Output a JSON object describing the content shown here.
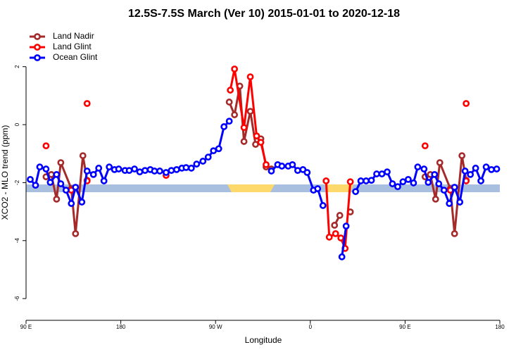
{
  "chart_data": {
    "type": "line",
    "title": "12.5S-7.5S March (Ver 10)   2015-01-01 to 2020-12-18",
    "x_label": "Longitude",
    "y_label": "XCO2 - MLO trend (ppm)",
    "xlim": [
      90,
      540
    ],
    "xticks": [
      {
        "value": 90,
        "label": "90 E"
      },
      {
        "value": 180,
        "label": "180"
      },
      {
        "value": 270,
        "label": "90 W"
      },
      {
        "value": 360,
        "label": "0"
      },
      {
        "value": 450,
        "label": "90 E"
      },
      {
        "value": 540,
        "label": "180"
      }
    ],
    "ylim": [
      -6.75,
      3.45
    ],
    "yticks": [
      -6,
      -4,
      -2,
      0,
      2
    ],
    "legend": "top-left",
    "series": [
      {
        "name": "Land Nadir",
        "color": "#a52a2a",
        "x": [
          109,
          114,
          119,
          123,
          133,
          137,
          144,
          148,
          null,
          283,
          288,
          293,
          297,
          303,
          308,
          313,
          318,
          323,
          null,
          383,
          388,
          null,
          398,
          null,
          469,
          474,
          479,
          483,
          493,
          497,
          504,
          508
        ],
        "values": [
          -1.8,
          -1.72,
          -2.57,
          -1.31,
          -2.21,
          -3.76,
          -1.07,
          -1.92,
          null,
          0.78,
          0.34,
          1.33,
          -0.58,
          0.46,
          -0.68,
          -0.49,
          -1.46,
          -1.53,
          null,
          -3.47,
          -3.13,
          null,
          -3.01,
          null,
          -1.8,
          -1.72,
          -2.57,
          -1.31,
          -2.21,
          -3.76,
          -1.07,
          -1.92
        ]
      },
      {
        "name": "Land Glint",
        "color": "#ff0000",
        "x": [
          109,
          null,
          133,
          null,
          148,
          null,
          148,
          null,
          223,
          null,
          284,
          288,
          297,
          303,
          309,
          313,
          318,
          null,
          375,
          378,
          384,
          389,
          393,
          398,
          null,
          469,
          null,
          493,
          null,
          508,
          null,
          508
        ],
        "values": [
          -0.73,
          null,
          -2.26,
          null,
          0.73,
          null,
          -1.94,
          null,
          -1.75,
          null,
          1.19,
          1.92,
          -0.1,
          1.65,
          -0.39,
          -0.61,
          -1.38,
          null,
          -1.94,
          -3.88,
          -3.76,
          -3.91,
          -4.27,
          -1.97,
          null,
          -0.73,
          null,
          -2.26,
          null,
          0.73,
          null,
          -1.94
        ]
      },
      {
        "name": "Ocean Glint",
        "color": "#0000ff",
        "x": [
          94,
          99,
          103,
          109,
          113,
          119,
          123,
          128,
          133,
          137,
          143,
          148,
          154,
          159,
          164,
          169,
          174,
          178,
          184,
          188,
          193,
          198,
          203,
          208,
          212,
          217,
          223,
          228,
          233,
          238,
          242,
          247,
          252,
          258,
          263,
          268,
          273,
          278,
          283,
          null,
          323,
          329,
          333,
          339,
          343,
          348,
          353,
          357,
          363,
          367,
          372,
          null,
          390,
          394,
          null,
          403,
          408,
          413,
          418,
          423,
          428,
          433,
          438,
          443,
          448,
          453,
          458,
          462,
          468,
          472,
          478,
          482,
          487,
          492,
          497,
          502,
          507,
          512,
          517,
          522,
          527,
          532,
          537
        ],
        "values": [
          -1.89,
          -2.09,
          -1.46,
          -1.53,
          -1.99,
          -1.72,
          -2.04,
          -2.26,
          -2.72,
          -2.16,
          -2.67,
          -1.6,
          -1.72,
          -1.5,
          -1.94,
          -1.46,
          -1.55,
          -1.53,
          -1.58,
          -1.58,
          -1.53,
          -1.63,
          -1.58,
          -1.55,
          -1.6,
          -1.6,
          -1.65,
          -1.58,
          -1.55,
          -1.5,
          -1.48,
          -1.5,
          -1.36,
          -1.26,
          -1.12,
          -0.9,
          -0.83,
          -0.07,
          0.12,
          null,
          -1.6,
          -1.38,
          -1.43,
          -1.43,
          -1.38,
          -1.58,
          -1.55,
          -1.65,
          -2.26,
          -2.21,
          -2.79,
          null,
          -4.56,
          -3.5,
          null,
          -2.31,
          -1.94,
          -1.94,
          -1.92,
          -1.7,
          -1.7,
          -1.63,
          -2.04,
          -2.14,
          -1.97,
          -1.89,
          -2.01,
          -1.46,
          -1.53,
          -1.99,
          -1.72,
          -2.04,
          -2.26,
          -2.72,
          -2.16,
          -2.67,
          -1.6,
          -1.72,
          -1.5,
          -1.94,
          -1.46,
          -1.55,
          -1.53
        ]
      }
    ]
  }
}
